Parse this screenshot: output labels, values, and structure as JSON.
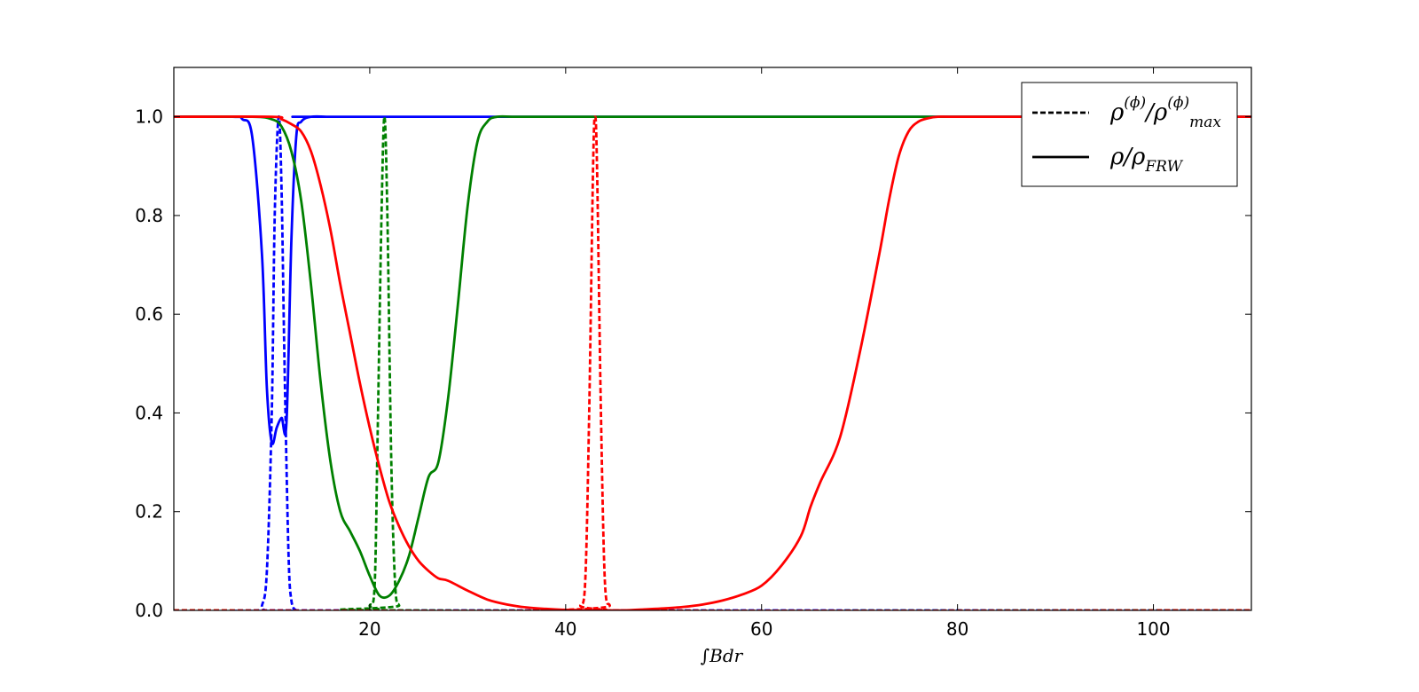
{
  "chart_data": {
    "type": "line",
    "title": "",
    "xlabel": "∫Bdr",
    "ylabel": "",
    "xlim": [
      0,
      110
    ],
    "ylim": [
      0,
      1.1
    ],
    "xticks": [
      20,
      40,
      60,
      80,
      100
    ],
    "yticks": [
      0.0,
      0.2,
      0.4,
      0.6,
      0.8,
      1.0
    ],
    "xtick_labels": [
      "20",
      "40",
      "60",
      "80",
      "100"
    ],
    "ytick_labels": [
      "0.0",
      "0.2",
      "0.4",
      "0.6",
      "0.8",
      "1.0"
    ],
    "grid": false,
    "legend_position": "top-right",
    "legend": [
      {
        "style": "dashed",
        "label": "ρ^(ϕ)/ρ^(ϕ)_max",
        "base": "ρ",
        "sup": "(ϕ)",
        "sep": "/",
        "base2": "ρ",
        "sup2": "(ϕ)",
        "sub2": "max"
      },
      {
        "style": "solid",
        "label": "ρ/ρ_FRW",
        "base": "ρ/ρ",
        "sub": "FRW"
      }
    ],
    "series": [
      {
        "color": "#0000ff",
        "style": "solid",
        "x": [
          0,
          6,
          7,
          8,
          9,
          9.5,
          10,
          10.5,
          11,
          11.5,
          12,
          12.5,
          13,
          14,
          16,
          20,
          110
        ],
        "y": [
          1.0,
          1.0,
          0.995,
          0.96,
          0.72,
          0.45,
          0.34,
          0.37,
          0.39,
          0.38,
          0.75,
          0.96,
          0.99,
          1.0,
          1.0,
          1.0,
          1.0
        ]
      },
      {
        "color": "#0000ff",
        "style": "dashed",
        "x": [
          0,
          8.5,
          9,
          9.5,
          10,
          10.3,
          10.7,
          11,
          11.3,
          11.7,
          12,
          12.5,
          13,
          110
        ],
        "y": [
          0.0,
          0.0,
          0.01,
          0.08,
          0.4,
          0.8,
          1.0,
          0.85,
          0.5,
          0.12,
          0.02,
          0.0,
          0.0,
          0.0
        ]
      },
      {
        "color": "#008000",
        "style": "solid",
        "x": [
          0,
          8,
          10,
          11,
          12,
          13,
          14,
          15,
          16,
          17,
          18,
          19,
          20,
          21,
          22,
          23,
          24,
          25,
          26,
          27,
          28,
          29,
          30,
          31,
          32,
          33,
          35,
          40,
          60,
          80,
          110
        ],
        "y": [
          1.0,
          1.0,
          0.995,
          0.98,
          0.93,
          0.83,
          0.66,
          0.46,
          0.3,
          0.2,
          0.16,
          0.12,
          0.07,
          0.03,
          0.03,
          0.06,
          0.11,
          0.19,
          0.27,
          0.3,
          0.43,
          0.62,
          0.82,
          0.95,
          0.99,
          1.0,
          1.0,
          1.0,
          1.0,
          1.0,
          1.0
        ]
      },
      {
        "color": "#008000",
        "style": "dashed",
        "x": [
          0,
          19.5,
          20,
          20.5,
          20.8,
          21.2,
          21.5,
          21.8,
          22.2,
          22.6,
          23,
          23.5,
          110
        ],
        "y": [
          0.0,
          0.0,
          0.01,
          0.05,
          0.35,
          0.8,
          1.0,
          0.8,
          0.3,
          0.05,
          0.01,
          0.0,
          0.0
        ]
      },
      {
        "color": "#ff0000",
        "style": "solid",
        "x": [
          0,
          10,
          11,
          12,
          13,
          14,
          15,
          16,
          17,
          18,
          19,
          20,
          21,
          22,
          23,
          24,
          25,
          26,
          27,
          28,
          30,
          32,
          34,
          36,
          38,
          40,
          42,
          44,
          46,
          48,
          50,
          52,
          54,
          56,
          58,
          60,
          62,
          64,
          65,
          66,
          68,
          70,
          72,
          73,
          74,
          75,
          76,
          77,
          78,
          80,
          90,
          110
        ],
        "y": [
          1.0,
          1.0,
          0.995,
          0.985,
          0.97,
          0.93,
          0.86,
          0.77,
          0.66,
          0.56,
          0.46,
          0.37,
          0.29,
          0.22,
          0.17,
          0.13,
          0.1,
          0.08,
          0.065,
          0.06,
          0.04,
          0.022,
          0.012,
          0.006,
          0.003,
          0.001,
          0.0,
          0.0,
          0.0,
          0.002,
          0.004,
          0.007,
          0.012,
          0.02,
          0.032,
          0.05,
          0.09,
          0.15,
          0.21,
          0.26,
          0.35,
          0.52,
          0.72,
          0.83,
          0.92,
          0.97,
          0.99,
          0.997,
          1.0,
          1.0,
          1.0,
          1.0
        ]
      },
      {
        "color": "#ff0000",
        "style": "dashed",
        "x": [
          0,
          41,
          41.5,
          42,
          42.4,
          42.8,
          43,
          43.2,
          43.6,
          44,
          44.5,
          45,
          110
        ],
        "y": [
          0.0,
          0.0,
          0.01,
          0.06,
          0.4,
          0.9,
          1.0,
          0.9,
          0.4,
          0.06,
          0.01,
          0.0,
          0.0
        ]
      }
    ]
  }
}
